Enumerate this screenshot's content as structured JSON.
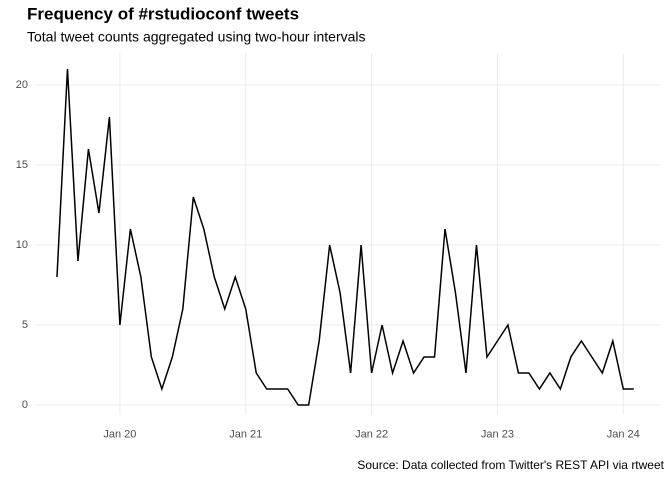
{
  "chart_data": {
    "type": "line",
    "title": "Frequency of #rstudioconf tweets",
    "subtitle": "Total tweet counts aggregated using two-hour intervals",
    "caption": "Source: Data collected from Twitter's REST API via rtweet",
    "x": [
      -12,
      -10,
      -8,
      -6,
      -4,
      -2,
      0,
      2,
      4,
      6,
      8,
      10,
      12,
      14,
      16,
      18,
      20,
      22,
      24,
      26,
      28,
      30,
      32,
      34,
      36,
      38,
      40,
      42,
      44,
      46,
      48,
      50,
      52,
      54,
      56,
      58,
      60,
      62,
      64,
      66,
      68,
      70,
      72,
      74,
      76,
      78,
      80,
      82,
      84,
      86,
      88,
      90,
      92,
      94,
      96,
      98
    ],
    "series": [
      {
        "color": "#000000",
        "values": [
          8,
          21,
          9,
          16,
          12,
          18,
          5,
          11,
          8,
          3,
          1,
          3,
          6,
          13,
          11,
          8,
          6,
          8,
          6,
          2,
          1,
          1,
          1,
          0,
          0,
          4,
          10,
          7,
          2,
          10,
          2,
          5,
          2,
          4,
          2,
          3,
          3,
          11,
          7,
          2,
          10,
          3,
          4,
          5,
          2,
          2,
          1,
          2,
          1,
          3,
          4,
          3,
          2,
          4,
          1,
          1
        ]
      }
    ],
    "xlim": [
      -16,
      103
    ],
    "xticks": [
      {
        "value": 0,
        "label": "Jan 20"
      },
      {
        "value": 24,
        "label": "Jan 21"
      },
      {
        "value": 48,
        "label": "Jan 22"
      },
      {
        "value": 72,
        "label": "Jan 23"
      },
      {
        "value": 96,
        "label": "Jan 24"
      }
    ],
    "ylim": [
      -0.6,
      22
    ],
    "yticks": [
      0,
      5,
      10,
      15,
      20
    ],
    "grid": true
  }
}
